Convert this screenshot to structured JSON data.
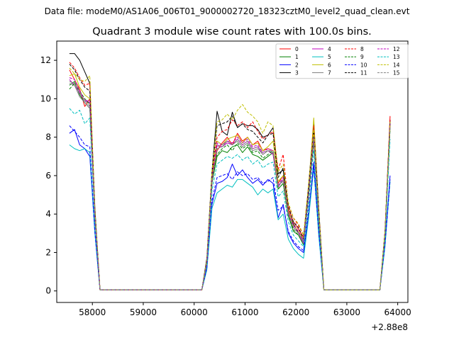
{
  "figure": {
    "suptitle": "Data file: modeM0/AS1A06_006T01_9000002720_18323cztM0_level2_quad_clean.evt"
  },
  "chart_data": {
    "type": "line",
    "title": "Quadrant 3 module wise count rates with 100.0s bins.",
    "xlabel": "",
    "ylabel": "",
    "x_offset_label": "+2.88e8",
    "xlim": [
      57300,
      64200
    ],
    "ylim": [
      -0.6,
      13.0
    ],
    "xticks": [
      58000,
      59000,
      60000,
      61000,
      62000,
      63000,
      64000
    ],
    "yticks": [
      0,
      2,
      4,
      6,
      8,
      10,
      12
    ],
    "grid": false,
    "legend": {
      "placement": "top-right",
      "columns": 4
    },
    "x": [
      57550,
      57650,
      57750,
      57850,
      57950,
      58050,
      58150,
      58250,
      58350,
      58450,
      58550,
      58650,
      58750,
      58850,
      58950,
      59050,
      59150,
      59250,
      59350,
      59450,
      59550,
      59650,
      59750,
      59850,
      59950,
      60050,
      60150,
      60250,
      60350,
      60450,
      60550,
      60650,
      60750,
      60850,
      60950,
      61050,
      61150,
      61250,
      61350,
      61450,
      61550,
      61650,
      61750,
      61850,
      61950,
      62050,
      62150,
      62250,
      62350,
      62450,
      62550,
      62650,
      62750,
      62850,
      62950,
      63050,
      63150,
      63250,
      63350,
      63450,
      63550,
      63650,
      63750,
      63850
    ],
    "series": [
      {
        "name": "0",
        "color": "#ff0000",
        "dash": "solid",
        "values": [
          11.5,
          11.0,
          10.5,
          9.6,
          10.0,
          4.0,
          0.05,
          0.05,
          0.05,
          0.05,
          0.05,
          0.05,
          0.05,
          0.05,
          0.05,
          0.05,
          0.05,
          0.05,
          0.05,
          0.05,
          0.05,
          0.05,
          0.05,
          0.05,
          0.05,
          0.05,
          0.05,
          1.5,
          5.6,
          7.3,
          7.7,
          8.0,
          7.6,
          8.2,
          7.8,
          8.0,
          7.6,
          7.8,
          7.3,
          7.4,
          7.3,
          5.6,
          6.0,
          4.3,
          3.6,
          3.2,
          2.8,
          5.2,
          8.2,
          4.0,
          0.05,
          0.05,
          0.05,
          0.05,
          0.05,
          0.05,
          0.05,
          0.05,
          0.05,
          0.05,
          0.05,
          0.05,
          3.0,
          9.1
        ]
      },
      {
        "name": "1",
        "color": "#008000",
        "dash": "solid",
        "values": [
          10.7,
          10.9,
          10.2,
          9.8,
          9.5,
          3.9,
          0.05,
          0.05,
          0.05,
          0.05,
          0.05,
          0.05,
          0.05,
          0.05,
          0.05,
          0.05,
          0.05,
          0.05,
          0.05,
          0.05,
          0.05,
          0.05,
          0.05,
          0.05,
          0.05,
          0.05,
          0.05,
          1.5,
          5.6,
          7.0,
          7.3,
          7.2,
          7.5,
          7.6,
          7.2,
          7.5,
          7.1,
          7.0,
          6.8,
          7.0,
          7.2,
          5.3,
          5.6,
          3.9,
          3.1,
          2.9,
          2.4,
          5.0,
          7.8,
          3.6,
          0.05,
          0.05,
          0.05,
          0.05,
          0.05,
          0.05,
          0.05,
          0.05,
          0.05,
          0.05,
          0.05,
          0.05,
          2.8,
          8.6
        ]
      },
      {
        "name": "2",
        "color": "#0000ff",
        "dash": "solid",
        "values": [
          8.2,
          8.4,
          7.6,
          7.4,
          7.0,
          3.0,
          0.05,
          0.05,
          0.05,
          0.05,
          0.05,
          0.05,
          0.05,
          0.05,
          0.05,
          0.05,
          0.05,
          0.05,
          0.05,
          0.05,
          0.05,
          0.05,
          0.05,
          0.05,
          0.05,
          0.05,
          0.05,
          1.2,
          4.5,
          5.6,
          5.7,
          5.9,
          6.6,
          6.0,
          6.3,
          5.9,
          5.6,
          5.8,
          5.5,
          5.8,
          5.6,
          3.8,
          4.5,
          3.0,
          2.5,
          2.2,
          2.0,
          4.0,
          6.7,
          3.0,
          0.05,
          0.05,
          0.05,
          0.05,
          0.05,
          0.05,
          0.05,
          0.05,
          0.05,
          0.05,
          0.05,
          0.05,
          2.4,
          6.0
        ]
      },
      {
        "name": "3",
        "color": "#000000",
        "dash": "solid",
        "values": [
          12.35,
          12.35,
          12.0,
          11.4,
          10.8,
          4.3,
          0.05,
          0.05,
          0.05,
          0.05,
          0.05,
          0.05,
          0.05,
          0.05,
          0.05,
          0.05,
          0.05,
          0.05,
          0.05,
          0.05,
          0.05,
          0.05,
          0.05,
          0.05,
          0.05,
          0.05,
          0.05,
          1.7,
          6.2,
          9.35,
          8.3,
          8.1,
          9.3,
          8.5,
          8.7,
          8.6,
          8.6,
          8.4,
          8.0,
          8.1,
          8.5,
          6.1,
          6.3,
          4.1,
          3.5,
          3.0,
          2.6,
          5.5,
          8.8,
          4.2,
          0.05,
          0.05,
          0.05,
          0.05,
          0.05,
          0.05,
          0.05,
          0.05,
          0.05,
          0.05,
          0.05,
          0.05,
          3.1,
          8.9
        ]
      },
      {
        "name": "4",
        "color": "#bf00bf",
        "dash": "solid",
        "values": [
          11.0,
          10.7,
          10.3,
          9.9,
          9.8,
          3.9,
          0.05,
          0.05,
          0.05,
          0.05,
          0.05,
          0.05,
          0.05,
          0.05,
          0.05,
          0.05,
          0.05,
          0.05,
          0.05,
          0.05,
          0.05,
          0.05,
          0.05,
          0.05,
          0.05,
          0.05,
          0.05,
          1.5,
          5.7,
          7.6,
          7.5,
          7.7,
          7.6,
          7.9,
          7.6,
          7.8,
          7.4,
          7.5,
          7.1,
          7.3,
          7.1,
          5.4,
          5.8,
          4.0,
          3.3,
          3.0,
          2.5,
          5.0,
          7.9,
          3.7,
          0.05,
          0.05,
          0.05,
          0.05,
          0.05,
          0.05,
          0.05,
          0.05,
          0.05,
          0.05,
          0.05,
          0.05,
          2.9,
          8.7
        ]
      },
      {
        "name": "5",
        "color": "#00bfbf",
        "dash": "solid",
        "values": [
          7.6,
          7.4,
          7.3,
          7.4,
          7.2,
          3.0,
          0.05,
          0.05,
          0.05,
          0.05,
          0.05,
          0.05,
          0.05,
          0.05,
          0.05,
          0.05,
          0.05,
          0.05,
          0.05,
          0.05,
          0.05,
          0.05,
          0.05,
          0.05,
          0.05,
          0.05,
          0.05,
          1.1,
          4.3,
          5.1,
          5.3,
          5.5,
          5.4,
          5.8,
          5.8,
          5.6,
          5.4,
          5.0,
          5.3,
          5.1,
          5.3,
          3.7,
          4.0,
          2.7,
          2.2,
          1.9,
          1.7,
          3.8,
          6.4,
          2.8,
          0.05,
          0.05,
          0.05,
          0.05,
          0.05,
          0.05,
          0.05,
          0.05,
          0.05,
          0.05,
          0.05,
          0.05,
          2.3,
          5.7
        ]
      },
      {
        "name": "6",
        "color": "#bfbf00",
        "dash": "solid",
        "values": [
          11.2,
          11.3,
          10.6,
          10.2,
          10.0,
          4.0,
          0.05,
          0.05,
          0.05,
          0.05,
          0.05,
          0.05,
          0.05,
          0.05,
          0.05,
          0.05,
          0.05,
          0.05,
          0.05,
          0.05,
          0.05,
          0.05,
          0.05,
          0.05,
          0.05,
          0.05,
          0.05,
          1.6,
          5.9,
          7.8,
          7.6,
          7.9,
          8.0,
          8.1,
          7.7,
          8.0,
          7.6,
          7.7,
          7.3,
          7.5,
          7.8,
          5.7,
          6.0,
          4.2,
          3.4,
          3.1,
          2.7,
          5.3,
          9.0,
          3.8,
          0.05,
          0.05,
          0.05,
          0.05,
          0.05,
          0.05,
          0.05,
          0.05,
          0.05,
          0.05,
          0.05,
          0.05,
          2.9,
          8.6
        ]
      },
      {
        "name": "7",
        "color": "#808080",
        "dash": "solid",
        "values": [
          10.8,
          10.7,
          10.1,
          9.8,
          9.5,
          3.8,
          0.05,
          0.05,
          0.05,
          0.05,
          0.05,
          0.05,
          0.05,
          0.05,
          0.05,
          0.05,
          0.05,
          0.05,
          0.05,
          0.05,
          0.05,
          0.05,
          0.05,
          0.05,
          0.05,
          0.05,
          0.05,
          1.5,
          5.6,
          7.4,
          7.5,
          7.8,
          7.6,
          7.8,
          7.5,
          7.7,
          7.3,
          7.4,
          7.1,
          7.3,
          7.2,
          5.5,
          5.7,
          4.0,
          3.3,
          3.0,
          2.6,
          5.1,
          8.0,
          3.7,
          0.05,
          0.05,
          0.05,
          0.05,
          0.05,
          0.05,
          0.05,
          0.05,
          0.05,
          0.05,
          0.05,
          0.05,
          2.9,
          8.5
        ]
      },
      {
        "name": "8",
        "color": "#ff0000",
        "dash": "dashed",
        "values": [
          11.9,
          11.6,
          11.1,
          10.7,
          10.8,
          4.1,
          0.05,
          0.05,
          0.05,
          0.05,
          0.05,
          0.05,
          0.05,
          0.05,
          0.05,
          0.05,
          0.05,
          0.05,
          0.05,
          0.05,
          0.05,
          0.05,
          0.05,
          0.05,
          0.05,
          0.05,
          0.05,
          1.6,
          6.0,
          8.0,
          8.3,
          8.4,
          8.9,
          8.6,
          8.8,
          8.5,
          8.8,
          8.3,
          7.9,
          8.1,
          8.3,
          6.3,
          7.1,
          4.5,
          3.8,
          3.4,
          2.9,
          5.5,
          8.6,
          4.1,
          0.05,
          0.05,
          0.05,
          0.05,
          0.05,
          0.05,
          0.05,
          0.05,
          0.05,
          0.05,
          0.05,
          0.05,
          3.1,
          9.0
        ]
      },
      {
        "name": "9",
        "color": "#008000",
        "dash": "dashed",
        "values": [
          10.5,
          10.8,
          10.4,
          10.0,
          9.7,
          3.9,
          0.05,
          0.05,
          0.05,
          0.05,
          0.05,
          0.05,
          0.05,
          0.05,
          0.05,
          0.05,
          0.05,
          0.05,
          0.05,
          0.05,
          0.05,
          0.05,
          0.05,
          0.05,
          0.05,
          0.05,
          0.05,
          1.5,
          5.7,
          7.1,
          7.4,
          7.6,
          7.3,
          7.7,
          7.4,
          7.6,
          7.2,
          7.3,
          6.9,
          7.1,
          7.3,
          5.3,
          5.6,
          3.9,
          3.2,
          2.9,
          2.4,
          4.9,
          7.8,
          3.6,
          0.05,
          0.05,
          0.05,
          0.05,
          0.05,
          0.05,
          0.05,
          0.05,
          0.05,
          0.05,
          0.05,
          0.05,
          2.8,
          8.4
        ]
      },
      {
        "name": "10",
        "color": "#0000ff",
        "dash": "dashed",
        "values": [
          8.6,
          8.3,
          8.0,
          7.6,
          7.5,
          3.1,
          0.05,
          0.05,
          0.05,
          0.05,
          0.05,
          0.05,
          0.05,
          0.05,
          0.05,
          0.05,
          0.05,
          0.05,
          0.05,
          0.05,
          0.05,
          0.05,
          0.05,
          0.05,
          0.05,
          0.05,
          0.05,
          1.2,
          4.7,
          5.9,
          6.0,
          6.1,
          5.8,
          6.2,
          6.0,
          6.1,
          5.8,
          5.9,
          5.6,
          5.7,
          5.9,
          4.2,
          4.4,
          3.1,
          2.6,
          2.3,
          2.1,
          4.2,
          6.5,
          3.0,
          0.05,
          0.05,
          0.05,
          0.05,
          0.05,
          0.05,
          0.05,
          0.05,
          0.05,
          0.05,
          0.05,
          0.05,
          2.4,
          5.8
        ]
      },
      {
        "name": "11",
        "color": "#000000",
        "dash": "dashed",
        "values": [
          11.8,
          11.5,
          11.0,
          10.6,
          10.4,
          4.1,
          0.05,
          0.05,
          0.05,
          0.05,
          0.05,
          0.05,
          0.05,
          0.05,
          0.05,
          0.05,
          0.05,
          0.05,
          0.05,
          0.05,
          0.05,
          0.05,
          0.05,
          0.05,
          0.05,
          0.05,
          0.05,
          1.6,
          6.1,
          8.6,
          8.7,
          8.8,
          9.1,
          8.5,
          8.7,
          8.4,
          8.3,
          8.0,
          7.7,
          8.1,
          8.2,
          5.9,
          6.4,
          4.4,
          3.6,
          3.3,
          2.7,
          5.4,
          8.3,
          4.0,
          0.05,
          0.05,
          0.05,
          0.05,
          0.05,
          0.05,
          0.05,
          0.05,
          0.05,
          0.05,
          0.05,
          0.05,
          3.0,
          8.8
        ]
      },
      {
        "name": "12",
        "color": "#bf00bf",
        "dash": "dashed",
        "values": [
          11.1,
          11.0,
          10.4,
          9.9,
          9.9,
          3.9,
          0.05,
          0.05,
          0.05,
          0.05,
          0.05,
          0.05,
          0.05,
          0.05,
          0.05,
          0.05,
          0.05,
          0.05,
          0.05,
          0.05,
          0.05,
          0.05,
          0.05,
          0.05,
          0.05,
          0.05,
          0.05,
          1.5,
          5.8,
          7.7,
          7.6,
          7.8,
          7.7,
          8.0,
          7.7,
          7.9,
          7.5,
          7.6,
          7.2,
          7.4,
          7.3,
          5.5,
          5.9,
          4.1,
          3.4,
          3.1,
          2.6,
          5.1,
          8.0,
          3.7,
          0.05,
          0.05,
          0.05,
          0.05,
          0.05,
          0.05,
          0.05,
          0.05,
          0.05,
          0.05,
          0.05,
          0.05,
          2.9,
          8.7
        ]
      },
      {
        "name": "13",
        "color": "#00bfbf",
        "dash": "dashed",
        "values": [
          9.5,
          9.2,
          9.4,
          8.7,
          9.0,
          3.6,
          0.05,
          0.05,
          0.05,
          0.05,
          0.05,
          0.05,
          0.05,
          0.05,
          0.05,
          0.05,
          0.05,
          0.05,
          0.05,
          0.05,
          0.05,
          0.05,
          0.05,
          0.05,
          0.05,
          0.05,
          0.05,
          1.4,
          5.2,
          6.6,
          6.8,
          7.0,
          6.9,
          7.1,
          6.8,
          7.0,
          6.6,
          6.8,
          6.4,
          6.6,
          6.7,
          4.9,
          5.2,
          3.6,
          2.9,
          2.6,
          2.3,
          4.6,
          7.3,
          3.4,
          0.05,
          0.05,
          0.05,
          0.05,
          0.05,
          0.05,
          0.05,
          0.05,
          0.05,
          0.05,
          0.05,
          0.05,
          2.7,
          7.9
        ]
      },
      {
        "name": "14",
        "color": "#bfbf00",
        "dash": "dashed",
        "values": [
          11.6,
          11.3,
          11.0,
          10.9,
          11.2,
          4.2,
          0.05,
          0.05,
          0.05,
          0.05,
          0.05,
          0.05,
          0.05,
          0.05,
          0.05,
          0.05,
          0.05,
          0.05,
          0.05,
          0.05,
          0.05,
          0.05,
          0.05,
          0.05,
          0.05,
          0.05,
          0.05,
          1.6,
          6.2,
          8.8,
          8.9,
          9.2,
          8.9,
          9.4,
          9.7,
          9.3,
          9.1,
          8.8,
          8.2,
          8.8,
          8.6,
          6.2,
          6.6,
          4.6,
          3.8,
          3.5,
          2.9,
          5.6,
          8.4,
          4.1,
          0.05,
          0.05,
          0.05,
          0.05,
          0.05,
          0.05,
          0.05,
          0.05,
          0.05,
          0.05,
          0.05,
          0.05,
          3.1,
          8.8
        ]
      },
      {
        "name": "15",
        "color": "#808080",
        "dash": "dashed",
        "values": [
          10.9,
          10.8,
          10.3,
          9.9,
          9.6,
          3.9,
          0.05,
          0.05,
          0.05,
          0.05,
          0.05,
          0.05,
          0.05,
          0.05,
          0.05,
          0.05,
          0.05,
          0.05,
          0.05,
          0.05,
          0.05,
          0.05,
          0.05,
          0.05,
          0.05,
          0.05,
          0.05,
          1.5,
          5.7,
          7.5,
          7.6,
          7.8,
          7.6,
          7.9,
          7.6,
          7.8,
          7.4,
          7.5,
          7.2,
          7.3,
          7.3,
          5.5,
          5.8,
          4.0,
          3.3,
          3.0,
          2.6,
          5.1,
          8.0,
          3.7,
          0.05,
          0.05,
          0.05,
          0.05,
          0.05,
          0.05,
          0.05,
          0.05,
          0.05,
          0.05,
          0.05,
          0.05,
          2.9,
          8.6
        ]
      }
    ]
  }
}
